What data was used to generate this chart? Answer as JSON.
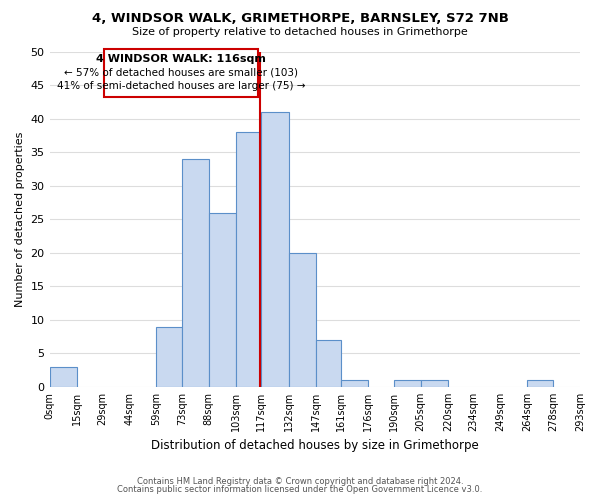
{
  "title": "4, WINDSOR WALK, GRIMETHORPE, BARNSLEY, S72 7NB",
  "subtitle": "Size of property relative to detached houses in Grimethorpe",
  "xlabel": "Distribution of detached houses by size in Grimethorpe",
  "ylabel": "Number of detached properties",
  "bar_edges": [
    0,
    15,
    29,
    44,
    59,
    73,
    88,
    103,
    117,
    132,
    147,
    161,
    176,
    190,
    205,
    220,
    234,
    249,
    264,
    278,
    293
  ],
  "bar_heights": [
    3,
    0,
    0,
    0,
    9,
    34,
    26,
    38,
    41,
    20,
    7,
    1,
    0,
    1,
    1,
    0,
    0,
    0,
    1,
    0
  ],
  "bar_color": "#c9d9f0",
  "bar_edge_color": "#5b8fc9",
  "vline_x": 116,
  "vline_color": "#cc0000",
  "ylim": [
    0,
    50
  ],
  "yticks": [
    0,
    5,
    10,
    15,
    20,
    25,
    30,
    35,
    40,
    45,
    50
  ],
  "xtick_labels": [
    "0sqm",
    "15sqm",
    "29sqm",
    "44sqm",
    "59sqm",
    "73sqm",
    "88sqm",
    "103sqm",
    "117sqm",
    "132sqm",
    "147sqm",
    "161sqm",
    "176sqm",
    "190sqm",
    "205sqm",
    "220sqm",
    "234sqm",
    "249sqm",
    "264sqm",
    "278sqm",
    "293sqm"
  ],
  "annotation_title": "4 WINDSOR WALK: 116sqm",
  "annotation_line1": "← 57% of detached houses are smaller (103)",
  "annotation_line2": "41% of semi-detached houses are larger (75) →",
  "annotation_box_color": "#ffffff",
  "annotation_box_edge": "#cc0000",
  "footer1": "Contains HM Land Registry data © Crown copyright and database right 2024.",
  "footer2": "Contains public sector information licensed under the Open Government Licence v3.0.",
  "bg_color": "#ffffff",
  "grid_color": "#dddddd"
}
